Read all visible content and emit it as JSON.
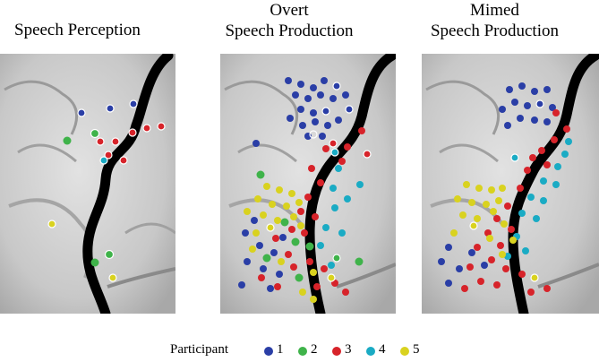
{
  "panels": [
    {
      "title_lines": [
        "Speech Perception"
      ]
    },
    {
      "title_lines": [
        "Overt",
        "Speech Production"
      ]
    },
    {
      "title_lines": [
        "Mimed",
        "Speech Production"
      ]
    }
  ],
  "legend": {
    "label": "Participant",
    "items": [
      {
        "label": "1",
        "color": "#2a3ea6"
      },
      {
        "label": "2",
        "color": "#3fb34a"
      },
      {
        "label": "3",
        "color": "#d7232a"
      },
      {
        "label": "4",
        "color": "#1aabc4"
      },
      {
        "label": "5",
        "color": "#d9d21f"
      }
    ]
  }
}
